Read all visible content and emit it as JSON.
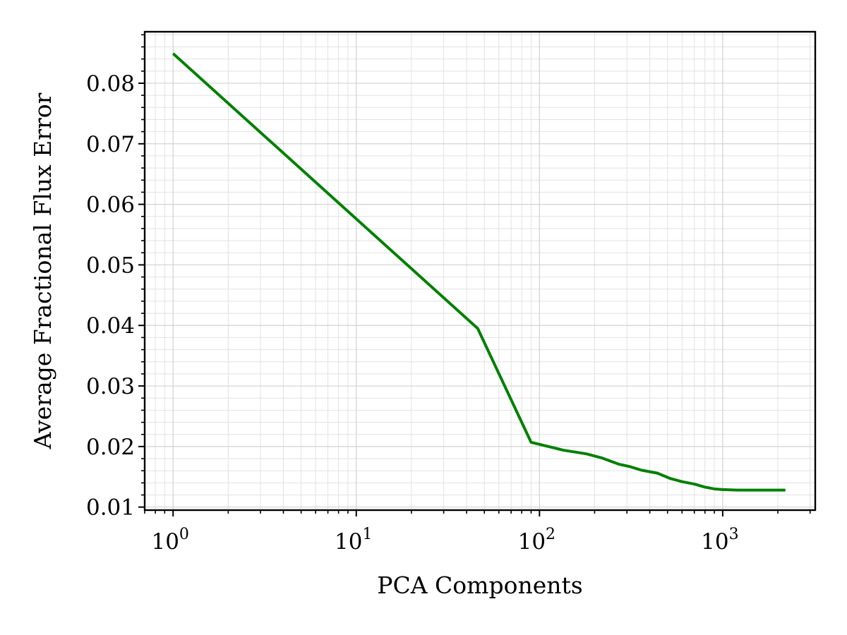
{
  "chart_data": {
    "type": "line",
    "title": "",
    "xlabel": "PCA Components",
    "ylabel": "Average Fractional Flux Error",
    "xscale": "log",
    "xlim": [
      0.7,
      3200
    ],
    "ylim": [
      0.0095,
      0.0885
    ],
    "x_ticks": [
      1,
      10,
      100,
      1000
    ],
    "x_tick_labels": [
      {
        "base": "10",
        "exp": "0"
      },
      {
        "base": "10",
        "exp": "1"
      },
      {
        "base": "10",
        "exp": "2"
      },
      {
        "base": "10",
        "exp": "3"
      }
    ],
    "y_ticks": [
      0.01,
      0.02,
      0.03,
      0.04,
      0.05,
      0.06,
      0.07,
      0.08
    ],
    "y_tick_labels": [
      "0.01",
      "0.02",
      "0.03",
      "0.04",
      "0.05",
      "0.06",
      "0.07",
      "0.08"
    ],
    "grid": true,
    "minor_grid": true,
    "legend": "none",
    "series": [
      {
        "color": "#008000",
        "x": [
          1,
          46,
          90,
          135,
          180,
          220,
          270,
          310,
          360,
          440,
          520,
          600,
          700,
          800,
          900,
          1000,
          1200,
          1500,
          1800,
          2200
        ],
        "y": [
          0.0849,
          0.0395,
          0.0207,
          0.0194,
          0.0188,
          0.0181,
          0.0171,
          0.0167,
          0.0161,
          0.0156,
          0.0147,
          0.0142,
          0.0138,
          0.0133,
          0.013,
          0.0129,
          0.0128,
          0.0128,
          0.0128,
          0.0128
        ]
      }
    ]
  }
}
